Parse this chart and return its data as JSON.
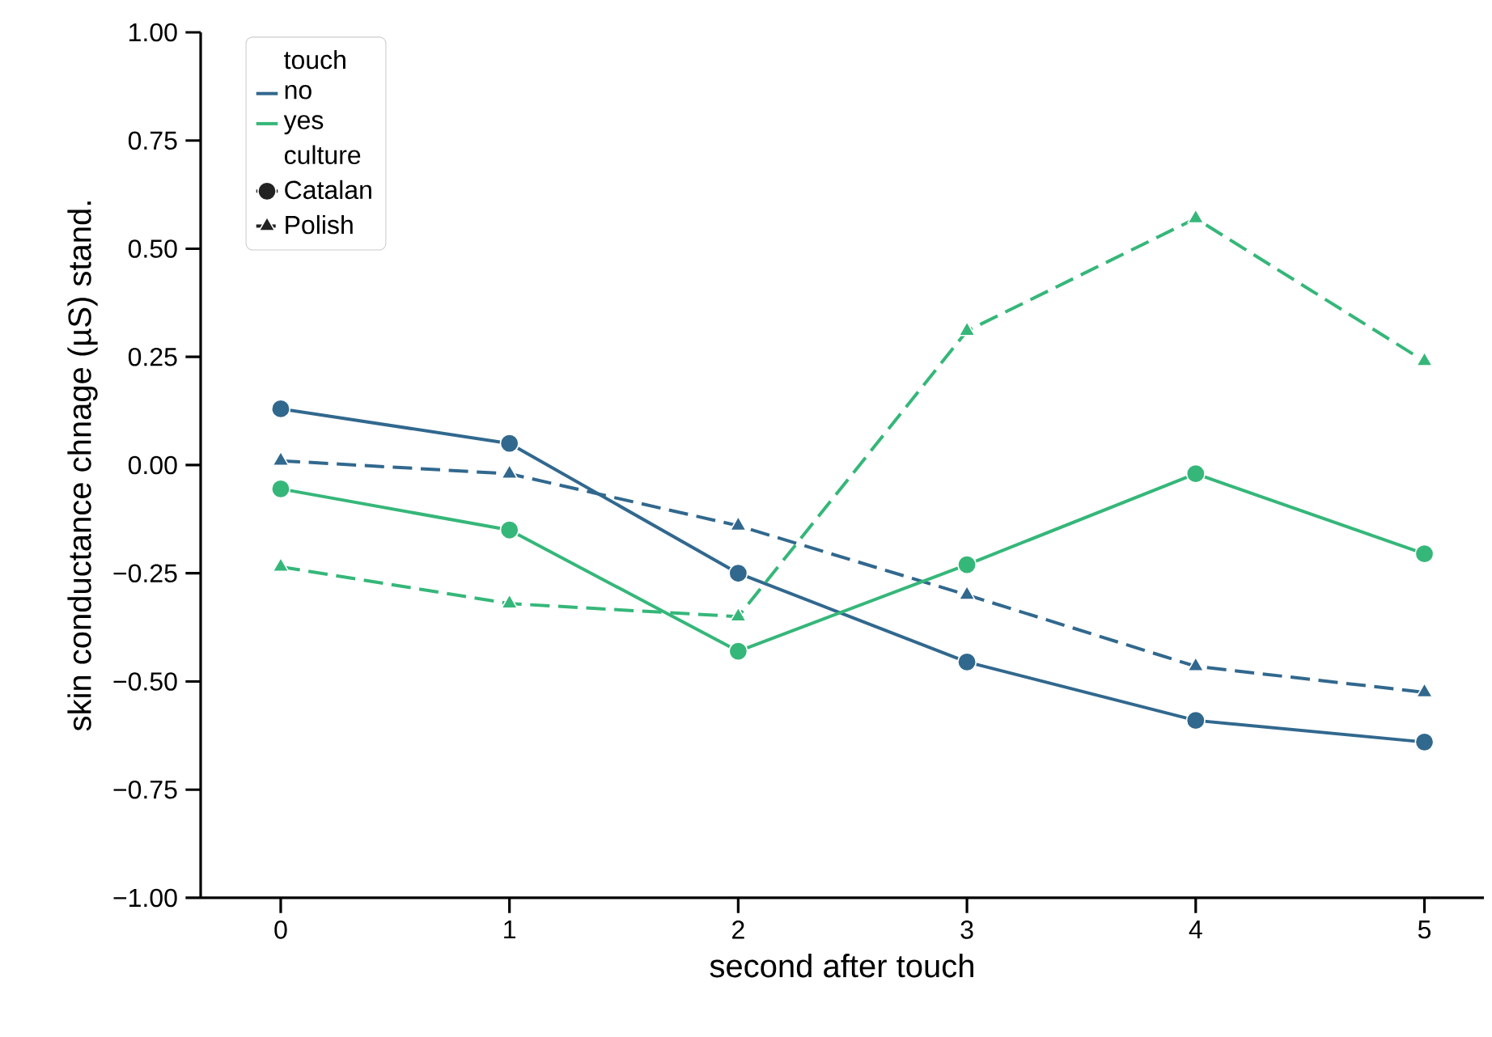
{
  "chart_data": {
    "type": "line",
    "xlabel": "second after touch",
    "ylabel": "skin conductance chnage (µS) stand.",
    "x": [
      0,
      1,
      2,
      3,
      4,
      5
    ],
    "xlim": [
      -0.35,
      5.26
    ],
    "xticks": [
      0,
      1,
      2,
      3,
      4,
      5
    ],
    "ylim": [
      -1,
      1
    ],
    "yticks": [
      {
        "value": 1,
        "label": "1.00"
      },
      {
        "value": 0.75,
        "label": "0.75"
      },
      {
        "value": 0.5,
        "label": "0.50"
      },
      {
        "value": 0.25,
        "label": "0.25"
      },
      {
        "value": 0,
        "label": "0.00"
      },
      {
        "value": -0.25,
        "label": "−0.25"
      },
      {
        "value": -0.5,
        "label": "−0.50"
      },
      {
        "value": -0.75,
        "label": "−0.75"
      },
      {
        "value": -1,
        "label": "−1.00"
      }
    ],
    "legend": "top left",
    "legend_title": "touch",
    "grid": false,
    "series": [
      {
        "color": "#31688e",
        "marker": "circle",
        "line_style": "solid",
        "values": [
          0.13,
          0.05,
          -0.25,
          -0.455,
          -0.59,
          -0.64
        ]
      },
      {
        "color": "#31688e",
        "marker": "triangle",
        "line_style": "dashed",
        "values": [
          0.01,
          -0.02,
          -0.14,
          -0.3,
          -0.465,
          -0.525
        ]
      },
      {
        "color": "#35b779",
        "marker": "circle",
        "line_style": "solid",
        "values": [
          -0.055,
          -0.15,
          -0.43,
          -0.23,
          -0.02,
          -0.205
        ]
      },
      {
        "color": "#35b779",
        "marker": "triangle",
        "line_style": "dashed",
        "values": [
          -0.235,
          -0.32,
          -0.35,
          0.31,
          0.57,
          0.24
        ]
      },
      {
        "name": "no",
        "color": "#31688e",
        "marker": "none",
        "line_style": "solid",
        "values": [
          null,
          null,
          null,
          null,
          null,
          null
        ]
      },
      {
        "name": "yes",
        "color": "#35b779",
        "marker": "none",
        "line_style": "solid",
        "values": [
          null,
          null,
          null,
          null,
          null,
          null
        ]
      },
      {
        "name": "culture",
        "values": [
          null,
          null,
          null,
          null,
          null,
          null
        ]
      },
      {
        "name": "Catalan",
        "color": "#222222",
        "marker": "circle",
        "line_style": "solid",
        "values": [
          null,
          null,
          null,
          null,
          null,
          null
        ]
      },
      {
        "name": "Polish",
        "color": "#222222",
        "marker": "triangle",
        "line_style": "dashed",
        "values": [
          null,
          null,
          null,
          null,
          null,
          null
        ]
      }
    ]
  }
}
